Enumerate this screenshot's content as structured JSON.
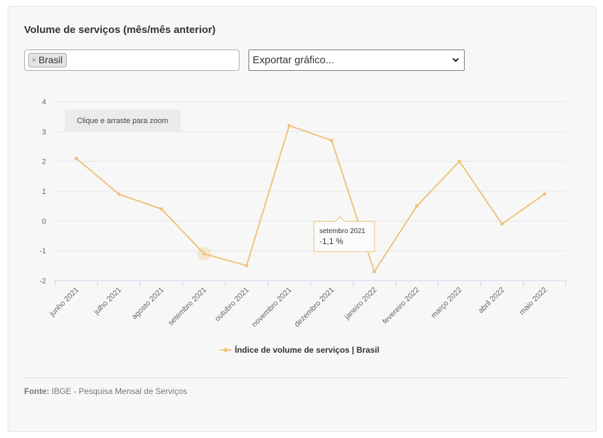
{
  "title": "Volume de serviços (mês/mês anterior)",
  "filter": {
    "remove_glyph": "×",
    "selected_tag": "Brasil"
  },
  "export": {
    "label": "Exportar gráfico..."
  },
  "zoom_hint": "Clique e arraste para zoom",
  "tooltip": {
    "label": "setembro 2021",
    "value": "-1,1 %"
  },
  "source": {
    "label": "Fonte:",
    "text": "IBGE - Pesquisa Mensal de Serviços"
  },
  "colors": {
    "series": "#f0c27b",
    "card_bg": "#f7f7f7",
    "tooltip_border": "#f0c27b"
  },
  "icons": {
    "tag_remove": "close-icon",
    "select": "chevron-down-icon",
    "legend": "line-marker-icon"
  },
  "chart_data": {
    "type": "line",
    "categories": [
      "junho 2021",
      "julho 2021",
      "agosto 2021",
      "setembro 2021",
      "outubro 2021",
      "novembro 2021",
      "dezembro 2021",
      "janeiro 2022",
      "fevereiro 2022",
      "março 2022",
      "abril 2022",
      "maio 2022"
    ],
    "series": [
      {
        "name": "Índice de volume de serviços | Brasil",
        "values": [
          2.1,
          0.9,
          0.4,
          -1.1,
          -1.5,
          3.2,
          2.7,
          -1.7,
          0.5,
          2.0,
          -0.1,
          0.9
        ]
      }
    ],
    "ylim": [
      -2,
      4
    ],
    "yticks": [
      "4",
      "3",
      "2",
      "1",
      "0",
      "-1",
      "-2"
    ],
    "highlighted_index": 3,
    "grid": true,
    "legend": "bottom-center"
  }
}
